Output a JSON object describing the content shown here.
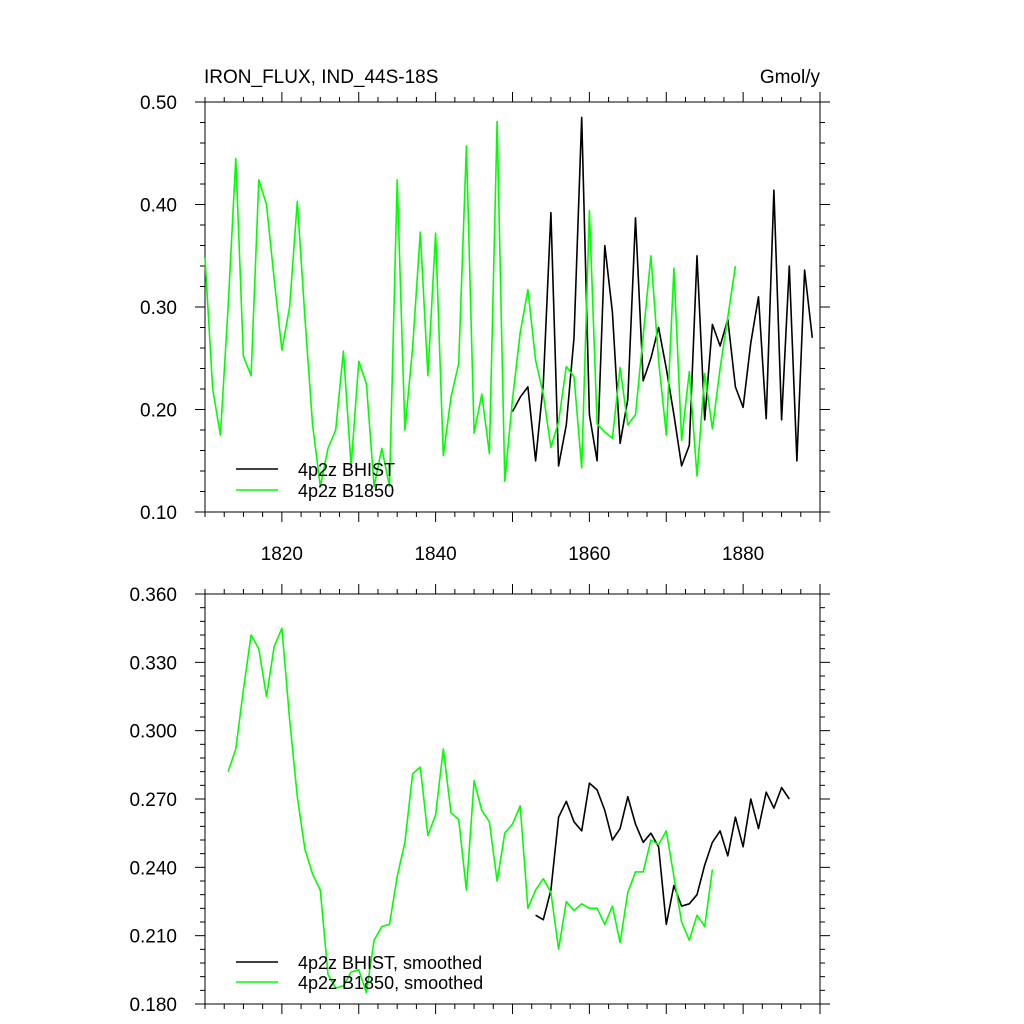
{
  "colors": {
    "bhist": "#000000",
    "b1850": "#00ff00"
  },
  "chart_data": [
    {
      "type": "line",
      "title": "IRON_FLUX, IND_44S-18S",
      "units": "Gmol/y",
      "xlim": [
        1810,
        1890
      ],
      "ylim": [
        0.1,
        0.5
      ],
      "xticks": [
        1820,
        1840,
        1860,
        1880
      ],
      "xtick_labels": [
        "1820",
        "1840",
        "1860",
        "1880"
      ],
      "yticks": [
        0.1,
        0.2,
        0.3,
        0.4,
        0.5
      ],
      "ytick_labels": [
        "0.10",
        "0.20",
        "0.30",
        "0.40",
        "0.50"
      ],
      "legend_position": "bottom-left",
      "grid": false,
      "series": [
        {
          "name": "4p2z BHIST",
          "color": "#000000",
          "x_start": 1850,
          "x_step": 1,
          "values": [
            0.198,
            0.212,
            0.222,
            0.15,
            0.225,
            0.392,
            0.145,
            0.185,
            0.27,
            0.485,
            0.195,
            0.15,
            0.36,
            0.295,
            0.167,
            0.21,
            0.387,
            0.228,
            0.25,
            0.28,
            0.24,
            0.195,
            0.145,
            0.165,
            0.35,
            0.19,
            0.283,
            0.262,
            0.288,
            0.222,
            0.202,
            0.265,
            0.31,
            0.191,
            0.414,
            0.19,
            0.34,
            0.15,
            0.336,
            0.27
          ]
        },
        {
          "name": "4p2z B1850",
          "color": "#00ff00",
          "x_start": 1810,
          "x_step": 1,
          "values": [
            0.348,
            0.22,
            0.175,
            0.3,
            0.445,
            0.252,
            0.233,
            0.424,
            0.4,
            0.327,
            0.258,
            0.3,
            0.403,
            0.29,
            0.185,
            0.125,
            0.162,
            0.18,
            0.257,
            0.145,
            0.247,
            0.225,
            0.125,
            0.162,
            0.125,
            0.424,
            0.18,
            0.26,
            0.373,
            0.233,
            0.372,
            0.155,
            0.212,
            0.245,
            0.457,
            0.177,
            0.215,
            0.157,
            0.481,
            0.13,
            0.21,
            0.275,
            0.317,
            0.248,
            0.215,
            0.163,
            0.188,
            0.242,
            0.232,
            0.143,
            0.394,
            0.186,
            0.178,
            0.172,
            0.241,
            0.185,
            0.195,
            0.272,
            0.35,
            0.248,
            0.175,
            0.338,
            0.17,
            0.237,
            0.135,
            0.235,
            0.181,
            0.24,
            0.29,
            0.34
          ]
        }
      ]
    },
    {
      "type": "line",
      "title": "",
      "units": "",
      "xlim": [
        1810,
        1890
      ],
      "ylim": [
        0.18,
        0.36
      ],
      "xticks": [
        1820,
        1840,
        1860,
        1880
      ],
      "xtick_labels": [
        "",
        "",
        "",
        ""
      ],
      "yticks": [
        0.18,
        0.21,
        0.24,
        0.27,
        0.3,
        0.33,
        0.36
      ],
      "ytick_labels": [
        "0.180",
        "0.210",
        "0.240",
        "0.270",
        "0.300",
        "0.330",
        "0.360"
      ],
      "legend_position": "bottom-left",
      "grid": false,
      "series": [
        {
          "name": "4p2z BHIST, smoothed",
          "color": "#000000",
          "x_start": 1853,
          "x_step": 1,
          "values": [
            0.219,
            0.217,
            0.23,
            0.262,
            0.269,
            0.26,
            0.256,
            0.277,
            0.274,
            0.265,
            0.252,
            0.257,
            0.271,
            0.259,
            0.251,
            0.255,
            0.249,
            0.215,
            0.232,
            0.223,
            0.224,
            0.228,
            0.241,
            0.251,
            0.256,
            0.245,
            0.262,
            0.249,
            0.27,
            0.257,
            0.273,
            0.266,
            0.275,
            0.27
          ]
        },
        {
          "name": "4p2z B1850, smoothed",
          "color": "#00ff00",
          "x_start": 1813,
          "x_step": 1,
          "values": [
            0.282,
            0.292,
            0.318,
            0.342,
            0.336,
            0.315,
            0.337,
            0.345,
            0.305,
            0.271,
            0.248,
            0.237,
            0.23,
            0.193,
            0.187,
            0.188,
            0.194,
            0.195,
            0.185,
            0.208,
            0.214,
            0.215,
            0.236,
            0.251,
            0.281,
            0.284,
            0.254,
            0.263,
            0.292,
            0.264,
            0.261,
            0.23,
            0.278,
            0.265,
            0.26,
            0.234,
            0.255,
            0.259,
            0.267,
            0.222,
            0.23,
            0.235,
            0.229,
            0.204,
            0.225,
            0.221,
            0.224,
            0.222,
            0.222,
            0.215,
            0.223,
            0.207,
            0.229,
            0.238,
            0.238,
            0.252,
            0.25,
            0.256,
            0.236,
            0.216,
            0.208,
            0.219,
            0.214,
            0.239
          ]
        }
      ]
    }
  ]
}
